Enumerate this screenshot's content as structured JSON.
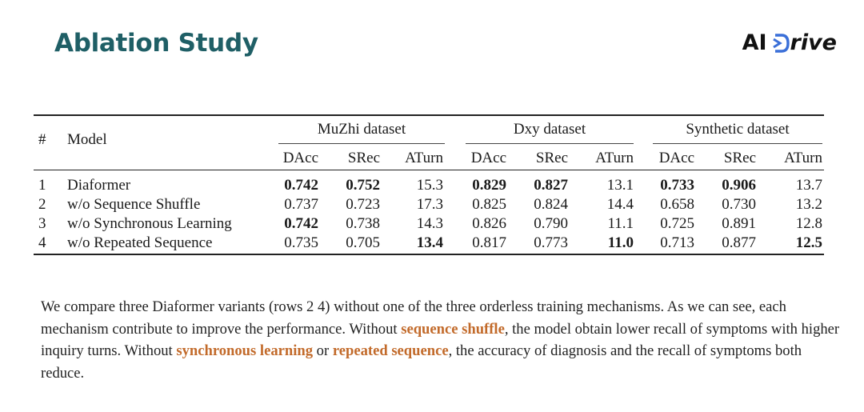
{
  "header": {
    "title": "Ablation Study",
    "logo_ai": "AI",
    "logo_rive": "rive",
    "logo_color": "#3a6fd8"
  },
  "table": {
    "col_hash": "#",
    "col_model": "Model",
    "groups": [
      "MuZhi dataset",
      "Dxy dataset",
      "Synthetic dataset"
    ],
    "subheaders": [
      "DAcc",
      "SRec",
      "ATurn",
      "DAcc",
      "SRec",
      "ATurn",
      "DAcc",
      "SRec",
      "ATurn"
    ],
    "rows": [
      {
        "idx": "1",
        "model": "Diaformer",
        "values": [
          "0.742",
          "0.752",
          "15.3",
          "0.829",
          "0.827",
          "13.1",
          "0.733",
          "0.906",
          "13.7"
        ],
        "bold": [
          true,
          true,
          false,
          true,
          true,
          false,
          true,
          true,
          false
        ]
      },
      {
        "idx": "2",
        "model": "w/o Sequence Shuffle",
        "values": [
          "0.737",
          "0.723",
          "17.3",
          "0.825",
          "0.824",
          "14.4",
          "0.658",
          "0.730",
          "13.2"
        ],
        "bold": [
          false,
          false,
          false,
          false,
          false,
          false,
          false,
          false,
          false
        ]
      },
      {
        "idx": "3",
        "model": "w/o Synchronous Learning",
        "values": [
          "0.742",
          "0.738",
          "14.3",
          "0.826",
          "0.790",
          "11.1",
          "0.725",
          "0.891",
          "12.8"
        ],
        "bold": [
          true,
          false,
          false,
          false,
          false,
          false,
          false,
          false,
          false
        ]
      },
      {
        "idx": "4",
        "model": "w/o Repeated Sequence",
        "values": [
          "0.735",
          "0.705",
          "13.4",
          "0.817",
          "0.773",
          "11.0",
          "0.713",
          "0.877",
          "12.5"
        ],
        "bold": [
          false,
          false,
          true,
          false,
          false,
          true,
          false,
          false,
          true
        ]
      }
    ]
  },
  "description": {
    "p1": "We compare three Diaformer variants (rows 2 4) without one of the three orderless training mechanisms. As we can see, each mechanism contribute to improve the performance. Without ",
    "h1": "sequence shuffle",
    "p2": ", the model obtain lower recall of symptoms with higher inquiry turns. Without ",
    "h2": "synchronous learning",
    "p3": " or ",
    "h3": "repeated sequence",
    "p4": ", the accuracy of diagnosis and the recall of symptoms both reduce.",
    "highlight_color": "#c26a2a"
  }
}
